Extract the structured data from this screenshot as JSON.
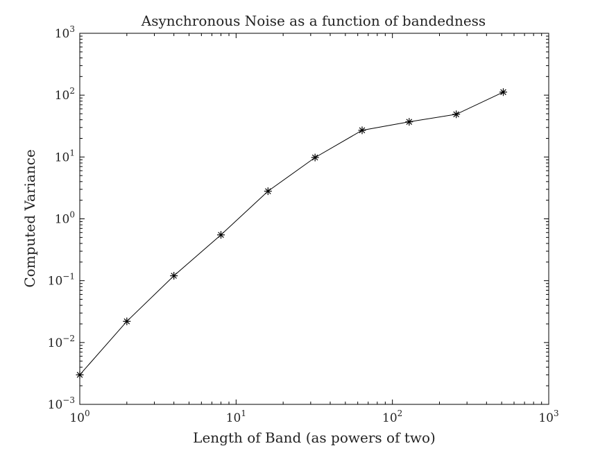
{
  "chart_data": {
    "type": "line",
    "title": "Asynchronous Noise as a function of bandedness",
    "xlabel": "Length of Band (as powers of two)",
    "ylabel": "Computed Variance",
    "xscale": "log",
    "yscale": "log",
    "xlim": [
      1,
      1000
    ],
    "ylim": [
      0.001,
      1000
    ],
    "grid": false,
    "marker": "asterisk",
    "line_color": "#000000",
    "x_ticks": [
      {
        "base": "10",
        "exp": "0"
      },
      {
        "base": "10",
        "exp": "1"
      },
      {
        "base": "10",
        "exp": "2"
      },
      {
        "base": "10",
        "exp": "3"
      }
    ],
    "y_ticks": [
      {
        "base": "10",
        "exp": "−3"
      },
      {
        "base": "10",
        "exp": "−2"
      },
      {
        "base": "10",
        "exp": "−1"
      },
      {
        "base": "10",
        "exp": "0"
      },
      {
        "base": "10",
        "exp": "1"
      },
      {
        "base": "10",
        "exp": "2"
      },
      {
        "base": "10",
        "exp": "3"
      }
    ],
    "x": [
      1,
      2,
      4,
      8,
      16,
      32,
      64,
      128,
      256,
      512
    ],
    "y": [
      0.003,
      0.022,
      0.12,
      0.55,
      2.8,
      9.8,
      27,
      37,
      49,
      112
    ]
  }
}
